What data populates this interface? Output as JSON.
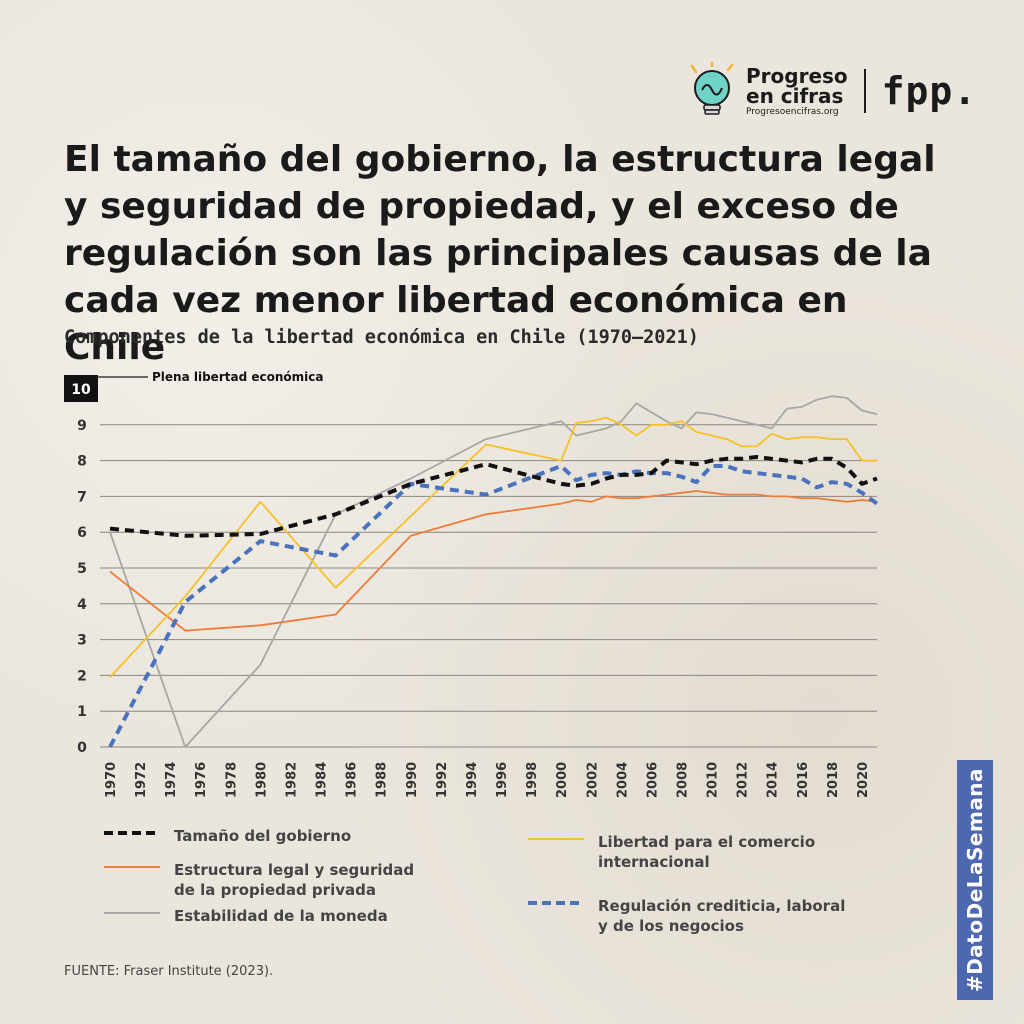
{
  "brand": {
    "line1": "Progreso",
    "line2": "en cifras",
    "url": "Progresoencifras.org",
    "partner": "fpp."
  },
  "title": "El tamaño del gobierno, la estructura legal y seguridad de propiedad, y el exceso de regulación son las principales causas de la cada vez menor libertad económica en Chile",
  "subtitle": "Componentes de la libertad económica en Chile (1970–2021)",
  "source": "FUENTE: Fraser Institute (2023).",
  "hashtag": "#DatoDeLaSemana",
  "colors": {
    "gobierno": "#111111",
    "legal": "#ee7c3b",
    "moneda": "#a7a7a7",
    "comercio": "#f6c026",
    "regulacion": "#4a72bd"
  },
  "chart_data": {
    "type": "line",
    "title": "Componentes de la libertad económica en Chile (1970–2021)",
    "ylim": [
      0,
      10
    ],
    "yticks": [
      0,
      1,
      2,
      3,
      4,
      5,
      6,
      7,
      8,
      9,
      10
    ],
    "xlim": [
      1970,
      2021
    ],
    "xticks": [
      1970,
      1972,
      1974,
      1976,
      1978,
      1980,
      1982,
      1984,
      1986,
      1988,
      1990,
      1992,
      1994,
      1996,
      1998,
      2000,
      2002,
      2004,
      2006,
      2008,
      2010,
      2012,
      2014,
      2016,
      2018,
      2020
    ],
    "annotation": "Plena libertad económica",
    "series": [
      {
        "key": "gobierno",
        "name": "Tamaño del gobierno",
        "style": "dashed",
        "x": [
          1970,
          1975,
          1980,
          1985,
          1990,
          1995,
          2000,
          2001,
          2002,
          2003,
          2004,
          2005,
          2006,
          2007,
          2008,
          2009,
          2010,
          2011,
          2012,
          2013,
          2014,
          2015,
          2016,
          2017,
          2018,
          2019,
          2020,
          2021
        ],
        "y": [
          6.1,
          5.9,
          5.95,
          6.5,
          7.35,
          7.9,
          7.35,
          7.3,
          7.35,
          7.5,
          7.6,
          7.6,
          7.65,
          8.0,
          7.95,
          7.9,
          8.0,
          8.05,
          8.05,
          8.1,
          8.05,
          8.0,
          7.95,
          8.05,
          8.05,
          7.8,
          7.35,
          7.5
        ]
      },
      {
        "key": "legal",
        "name": "Estructura legal y seguridad de la propiedad privada",
        "style": "solid",
        "x": [
          1970,
          1975,
          1980,
          1985,
          1990,
          1995,
          2000,
          2001,
          2002,
          2003,
          2004,
          2005,
          2006,
          2007,
          2008,
          2009,
          2010,
          2011,
          2012,
          2013,
          2014,
          2015,
          2016,
          2017,
          2018,
          2019,
          2020,
          2021
        ],
        "y": [
          4.9,
          3.25,
          3.4,
          3.7,
          5.9,
          6.5,
          6.8,
          6.9,
          6.85,
          7.0,
          6.95,
          6.95,
          7.0,
          7.05,
          7.1,
          7.15,
          7.1,
          7.05,
          7.05,
          7.05,
          7.0,
          7.0,
          6.95,
          6.95,
          6.9,
          6.85,
          6.9,
          6.85
        ]
      },
      {
        "key": "moneda",
        "name": "Estabilidad de la moneda",
        "style": "solid",
        "x": [
          1970,
          1975,
          1980,
          1985,
          1990,
          1995,
          2000,
          2001,
          2002,
          2003,
          2004,
          2005,
          2006,
          2007,
          2008,
          2009,
          2010,
          2011,
          2012,
          2013,
          2014,
          2015,
          2016,
          2017,
          2018,
          2019,
          2020,
          2021
        ],
        "y": [
          6.0,
          0.0,
          2.3,
          6.5,
          7.5,
          8.6,
          9.1,
          8.7,
          8.8,
          8.9,
          9.1,
          9.6,
          9.35,
          9.1,
          8.9,
          9.35,
          9.3,
          9.2,
          9.1,
          9.0,
          8.9,
          9.45,
          9.5,
          9.7,
          9.8,
          9.75,
          9.4,
          9.3
        ]
      },
      {
        "key": "comercio",
        "name": "Libertad para el comercio internacional",
        "style": "solid",
        "x": [
          1970,
          1975,
          1980,
          1985,
          1990,
          1995,
          2000,
          2001,
          2002,
          2003,
          2004,
          2005,
          2006,
          2007,
          2008,
          2009,
          2010,
          2011,
          2012,
          2013,
          2014,
          2015,
          2016,
          2017,
          2018,
          2019,
          2020,
          2021
        ],
        "y": [
          1.95,
          4.2,
          6.85,
          4.45,
          6.45,
          8.45,
          8.0,
          9.05,
          9.1,
          9.2,
          9.0,
          8.7,
          9.0,
          9.0,
          9.1,
          8.8,
          8.7,
          8.6,
          8.4,
          8.4,
          8.75,
          8.6,
          8.65,
          8.65,
          8.6,
          8.6,
          8.0,
          8.0
        ]
      },
      {
        "key": "regulacion",
        "name": "Regulación crediticia, laboral y de los negocios",
        "style": "dashed",
        "x": [
          1970,
          1975,
          1980,
          1985,
          1990,
          1995,
          2000,
          2001,
          2002,
          2003,
          2004,
          2005,
          2006,
          2007,
          2008,
          2009,
          2010,
          2011,
          2012,
          2013,
          2014,
          2015,
          2016,
          2017,
          2018,
          2019,
          2020,
          2021
        ],
        "y": [
          0.0,
          4.05,
          5.75,
          5.35,
          7.35,
          7.05,
          7.85,
          7.45,
          7.6,
          7.65,
          7.6,
          7.7,
          7.65,
          7.65,
          7.55,
          7.4,
          7.85,
          7.85,
          7.7,
          7.65,
          7.6,
          7.55,
          7.5,
          7.25,
          7.4,
          7.35,
          7.1,
          6.8
        ]
      }
    ]
  }
}
